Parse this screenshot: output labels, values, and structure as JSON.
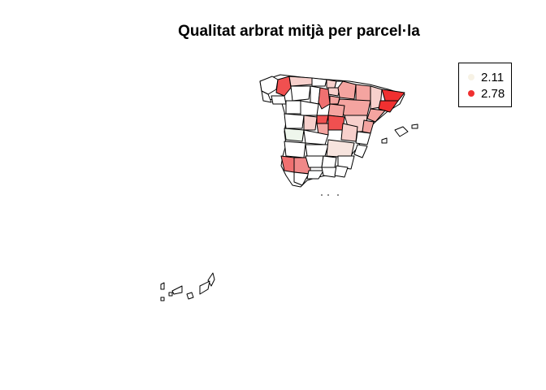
{
  "title": "Qualitat arbrat mitjà per parcel·la",
  "legend": {
    "items": [
      {
        "label": "2.11",
        "color": "#F7F2E5"
      },
      {
        "label": "2.78",
        "color": "#F03030"
      }
    ]
  },
  "map": {
    "region": "Spain provinces",
    "color_scale": {
      "low": "#F7F2E5",
      "high": "#F03030"
    },
    "fill_levels": [
      "white",
      "very-light-pink",
      "light-pink",
      "medium-pink",
      "red"
    ]
  }
}
